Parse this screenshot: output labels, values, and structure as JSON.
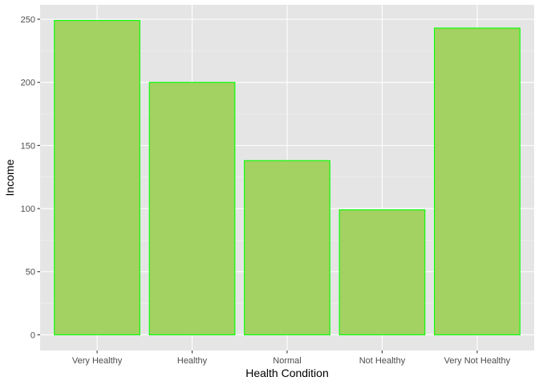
{
  "chart_data": {
    "type": "bar",
    "title": "",
    "xlabel": "Health Condition",
    "ylabel": "Income",
    "categories": [
      "Very Healthy",
      "Healthy",
      "Normal",
      "Not Healthy",
      "Very Not Healthy"
    ],
    "values": [
      249,
      200,
      138,
      99,
      243
    ],
    "ylim": [
      -12.45,
      261.45
    ],
    "yticks": [
      0,
      50,
      100,
      150,
      200,
      250
    ],
    "grid": true,
    "legend": "none",
    "colors": {
      "panel_background": "#e5e5e5",
      "grid_major": "#ffffff",
      "grid_minor": "#f2f2f2",
      "bar_fill": "#a3d162",
      "bar_stroke": "#00ff00",
      "tick_mark": "#333333",
      "tick_text": "#4d4d4d"
    }
  }
}
